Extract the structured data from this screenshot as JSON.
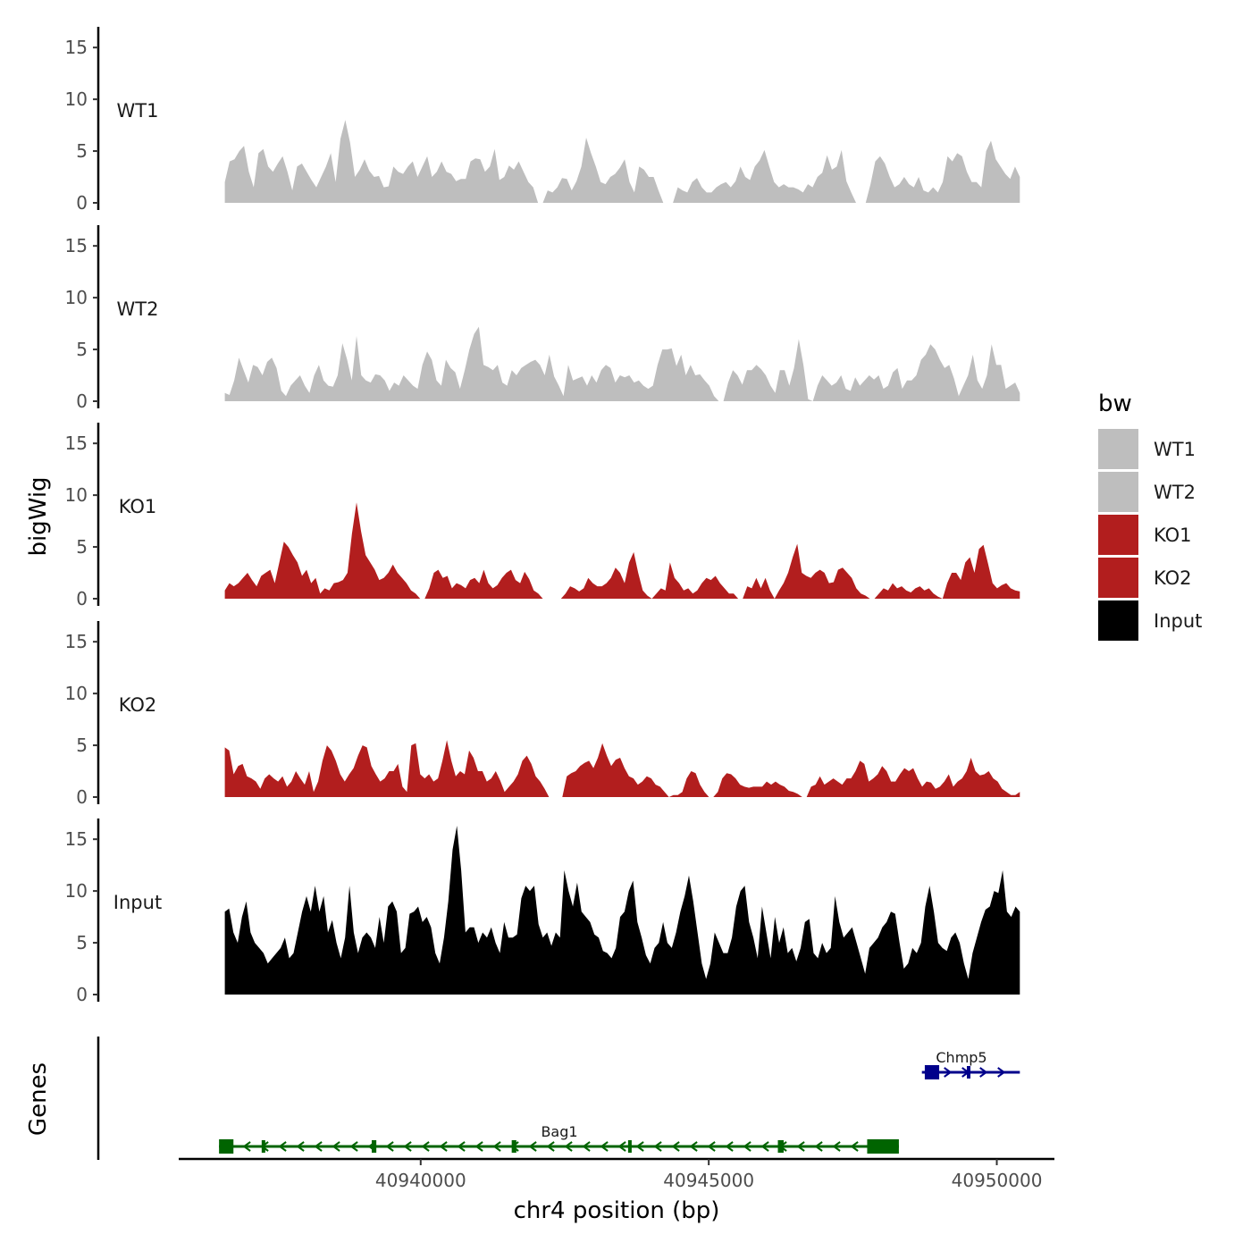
{
  "chart_data": {
    "type": "area",
    "chromosome": "chr4",
    "xlabel": "chr4 position (bp)",
    "ylabel": "bigWig",
    "genes_label": "Genes",
    "xlim": [
      40935800,
      40951000
    ],
    "ylim": [
      0,
      17
    ],
    "y_ticks": [
      0,
      5,
      10,
      15
    ],
    "x_ticks": [
      40940000,
      40945000,
      40950000
    ],
    "x_tick_labels": [
      "40940000",
      "40945000",
      "40950000"
    ],
    "legend": {
      "title": "bw",
      "position": "right"
    },
    "series": [
      {
        "name": "WT1",
        "color": "#bebebe",
        "x_range": [
          40936600,
          40950400
        ],
        "values": [
          2,
          4,
          4.2,
          5,
          5.5,
          3,
          1.5,
          4.8,
          5.2,
          3.5,
          3,
          3.8,
          4.5,
          3,
          1.2,
          3.5,
          3.8,
          3,
          2.2,
          1.5,
          2.5,
          3.5,
          4.8,
          2,
          6.2,
          8,
          5.8,
          2.5,
          3.2,
          4.2,
          3.1,
          2.5,
          2.6,
          1.5,
          1.6,
          3.5,
          3,
          2.8,
          3.5,
          4,
          2.5,
          3.5,
          4.5,
          2.5,
          3,
          4,
          3,
          2.8,
          2.1,
          2.3,
          2.3,
          4,
          4.3,
          4.2,
          3,
          3.5,
          5.2,
          2.2,
          2.5,
          3.6,
          3.2,
          4,
          3,
          2,
          1.5,
          0,
          0,
          1.2,
          1,
          1.5,
          2.4,
          2.3,
          1.2,
          2.1,
          3.5,
          6.3,
          4.8,
          3.5,
          2,
          1.8,
          2.5,
          2.8,
          3.4,
          4.2,
          2,
          1,
          3.5,
          3.2,
          2.5,
          2.5,
          1.2,
          0,
          0,
          0,
          1.5,
          1.2,
          1,
          2,
          2.4,
          1.5,
          1,
          1,
          1.5,
          1.8,
          2,
          1.5,
          2.1,
          3.5,
          2.5,
          2.2,
          3.5,
          4.1,
          5.1,
          3.5,
          2,
          1.5,
          1.8,
          1.5,
          1.5,
          1.3,
          1,
          1.8,
          1.5,
          2.5,
          2.9,
          4.6,
          3.2,
          3.5,
          5.1,
          2.1,
          1,
          0,
          0,
          0,
          1.8,
          4,
          4.5,
          3.8,
          2.5,
          1.5,
          1.8,
          2.5,
          1.8,
          1.5,
          2.5,
          1.2,
          1,
          1.5,
          1,
          2,
          4.5,
          4,
          4.8,
          4.5,
          3,
          2,
          2,
          1.5,
          5,
          6,
          4.2,
          3.5,
          2.8,
          2.3,
          3.5,
          2.5
        ]
      },
      {
        "name": "WT2",
        "color": "#bebebe",
        "x_range": [
          40936600,
          40950400
        ],
        "values": [
          0.8,
          0.6,
          2,
          4.2,
          3,
          1.8,
          3.5,
          3.3,
          2.5,
          3.8,
          4.2,
          3.2,
          1,
          0.5,
          1.5,
          2,
          2.5,
          1.5,
          0.8,
          2.5,
          3.5,
          2,
          1.5,
          1.4,
          2.5,
          5.6,
          4,
          2,
          6.3,
          2.5,
          2,
          1.8,
          2.6,
          2.5,
          2,
          1,
          1.8,
          1.5,
          2.5,
          2,
          1.5,
          1.2,
          3.5,
          4.8,
          4,
          2,
          1.5,
          4,
          3.2,
          2.8,
          1.2,
          3,
          5,
          6.5,
          7.2,
          3.5,
          3.3,
          3,
          3.5,
          1.8,
          1.5,
          3,
          2.5,
          3.2,
          3.5,
          3.8,
          4,
          3.5,
          2.5,
          4.5,
          2.4,
          1.5,
          0.5,
          3.5,
          2,
          2.2,
          2.4,
          1.5,
          2.5,
          1.8,
          3,
          3.5,
          3.2,
          1.8,
          2.5,
          2.3,
          2.5,
          1.8,
          2,
          1.5,
          1.2,
          1.5,
          3.5,
          5,
          5,
          5.1,
          3.4,
          4.5,
          2.5,
          3.5,
          2.5,
          2.6,
          2,
          1.5,
          0.5,
          0,
          0,
          1.8,
          3,
          2.5,
          1.6,
          3,
          3,
          3.5,
          3.1,
          2.5,
          1.5,
          0.8,
          3,
          3,
          1.5,
          3.2,
          6,
          3.5,
          0.2,
          0,
          1.5,
          2.5,
          2,
          1.5,
          1.8,
          2.5,
          1.2,
          1,
          2.3,
          1.5,
          2,
          2.5,
          2.1,
          2.5,
          1.2,
          1.5,
          2.8,
          3.2,
          1.2,
          2,
          2,
          2.5,
          4,
          4.5,
          5.5,
          5,
          4,
          3.2,
          3.5,
          2.2,
          0.5,
          1.5,
          2.5,
          4.5,
          2,
          1.2,
          2.5,
          5.5,
          3.5,
          3.5,
          1.2,
          1.5,
          1.8,
          0.8
        ]
      },
      {
        "name": "KO1",
        "color": "#b21e1e",
        "x_range": [
          40936600,
          40950400
        ],
        "values": [
          0.8,
          1.5,
          1.2,
          1.5,
          2,
          2.5,
          1.8,
          1.2,
          2.2,
          2.5,
          2.8,
          1.5,
          3.5,
          5.5,
          5,
          4.2,
          3.5,
          2.2,
          2.8,
          1.5,
          2,
          0.5,
          1,
          0.8,
          1.5,
          1.6,
          1.8,
          2.5,
          6.3,
          9.3,
          6.5,
          4.2,
          3.5,
          2.8,
          1.8,
          2,
          2.5,
          3.3,
          2.5,
          2,
          1.5,
          0.8,
          0.5,
          0,
          0,
          1,
          2.5,
          2.8,
          2,
          2.2,
          1,
          1.5,
          1.3,
          1,
          1.8,
          2,
          1.5,
          2.8,
          1.5,
          1,
          1.3,
          2,
          2.5,
          2.8,
          1.8,
          1.5,
          2.6,
          1.9,
          0.8,
          0.5,
          0,
          0,
          0,
          0,
          0,
          0.5,
          1.2,
          1,
          0.7,
          1,
          2,
          1.5,
          1.2,
          1.2,
          1.5,
          2,
          3,
          2.5,
          1.5,
          3.5,
          4.5,
          2.5,
          0.8,
          0.3,
          0,
          0.5,
          1,
          0.8,
          3.5,
          2,
          1.5,
          0.8,
          1,
          0.5,
          0.8,
          1.5,
          2,
          1.8,
          2.2,
          1.5,
          1,
          0.5,
          0.5,
          0,
          0,
          1.2,
          1,
          2,
          1,
          2,
          0.8,
          0,
          0.8,
          1.5,
          2.5,
          4,
          5.3,
          2.5,
          2.2,
          2,
          2.5,
          2.8,
          2.5,
          1.5,
          1.6,
          2.8,
          3,
          2.5,
          2,
          1,
          0.5,
          0.3,
          0,
          0,
          0.5,
          1,
          0.8,
          1.5,
          1,
          1.2,
          0.8,
          0.6,
          1,
          1.2,
          0.8,
          1,
          0.5,
          0.2,
          0,
          1.5,
          2.5,
          2.5,
          1.8,
          3.5,
          4,
          2.5,
          4.8,
          5.2,
          3.4,
          1.5,
          1,
          1.3,
          1.5,
          1,
          0.8,
          0.7
        ]
      },
      {
        "name": "KO2",
        "color": "#b21e1e",
        "x_range": [
          40936600,
          40950400
        ],
        "values": [
          4.8,
          4.5,
          2.2,
          3,
          3.2,
          2,
          1.8,
          1.5,
          0.8,
          1.8,
          2.2,
          1.8,
          1.5,
          2,
          1,
          1.5,
          2.5,
          1.8,
          1.2,
          2.5,
          0.5,
          1.5,
          3.5,
          5,
          4.5,
          3.5,
          2.2,
          1.5,
          2.2,
          2.8,
          4,
          5,
          4.8,
          3,
          2.2,
          1.5,
          1.8,
          2.5,
          2.5,
          3.2,
          1,
          0.5,
          5,
          5.2,
          2.2,
          1.8,
          2.2,
          1.5,
          1.8,
          3.5,
          5.5,
          3.5,
          2,
          2.5,
          2.2,
          4.5,
          3.8,
          2.5,
          2.5,
          1.5,
          1.8,
          2.5,
          1.6,
          0.5,
          1,
          1.5,
          2.2,
          3.5,
          4,
          3.2,
          2,
          1.5,
          0.8,
          0,
          0,
          0,
          0,
          2,
          2.3,
          2.5,
          3,
          3.3,
          3.5,
          2.8,
          3.8,
          5.2,
          4,
          3,
          3.6,
          3.8,
          2.8,
          2,
          1.8,
          1.2,
          1.5,
          2,
          1.8,
          1.2,
          1,
          0.5,
          0,
          0.2,
          0.2,
          0.5,
          1.8,
          2.5,
          2.3,
          1.2,
          0.5,
          0,
          0,
          0.5,
          1.8,
          2.3,
          2.2,
          1.8,
          1.2,
          1,
          0.9,
          1,
          1,
          1,
          1.5,
          1.2,
          1.5,
          1.2,
          1,
          0.6,
          0.5,
          0.3,
          0,
          0,
          1,
          1.2,
          2,
          1.2,
          1.5,
          1.8,
          1.5,
          1.2,
          1.8,
          1.8,
          2.5,
          3.5,
          3.2,
          1.5,
          1.8,
          2.2,
          3,
          2.5,
          1.5,
          1.5,
          2.2,
          2.8,
          2.5,
          2.8,
          1.8,
          1,
          1.5,
          1.4,
          0.8,
          1,
          1.5,
          2.2,
          1,
          1.5,
          1.8,
          2.5,
          3.8,
          2.5,
          2.1,
          2.2,
          2.5,
          1.8,
          1.5,
          0.8,
          0.5,
          0.2,
          0.2,
          0.5
        ]
      },
      {
        "name": "Input",
        "color": "#000000",
        "x_range": [
          40936600,
          40950400
        ],
        "values": [
          8,
          8.3,
          6,
          5,
          7.5,
          9,
          6,
          5,
          4.5,
          4,
          3,
          3.5,
          4,
          4.5,
          5.5,
          3.5,
          4,
          6,
          8,
          9.5,
          8,
          10.5,
          8,
          9.5,
          6,
          7.2,
          5,
          3.5,
          5.5,
          10.5,
          6,
          4,
          5.5,
          6,
          5.5,
          4.5,
          7.5,
          5,
          8.5,
          9,
          8,
          4,
          4.5,
          7.8,
          8,
          8.5,
          7,
          7.5,
          6.5,
          4,
          3,
          5.5,
          9,
          14,
          16.3,
          12,
          6,
          6.5,
          6.5,
          5,
          6,
          5.5,
          6.5,
          5,
          4,
          7,
          5.5,
          5.5,
          5.8,
          9.3,
          10.5,
          10,
          10.5,
          6.8,
          5.5,
          6,
          4.7,
          6,
          5.5,
          12,
          10,
          8.5,
          10.8,
          8,
          7.5,
          7,
          5.8,
          5.5,
          4.2,
          4,
          3.5,
          4.5,
          7.5,
          8,
          10,
          11,
          7,
          5.5,
          3.8,
          3,
          4.5,
          5,
          7,
          5,
          4.5,
          6,
          8,
          9.5,
          11.5,
          9,
          6,
          3,
          1.5,
          3,
          6,
          5,
          4,
          4,
          5.5,
          8.5,
          10,
          10.5,
          7,
          5.5,
          3.5,
          8.5,
          6,
          3.5,
          7.5,
          5,
          6.5,
          4,
          4.5,
          3.2,
          4.5,
          7,
          7.3,
          4,
          3.5,
          5,
          4,
          4.5,
          9.5,
          7,
          5.5,
          6,
          6.5,
          5,
          3.5,
          2,
          4.5,
          5,
          5.5,
          6.5,
          7,
          8,
          7.8,
          5,
          2.5,
          3,
          4.5,
          4,
          5,
          8.5,
          10.5,
          8,
          5,
          4.5,
          4.2,
          5.5,
          6,
          5,
          3,
          1.5,
          4,
          5.5,
          7,
          8.2,
          8.5,
          10,
          9.8,
          12,
          8,
          7.5,
          8.5,
          8
        ]
      }
    ],
    "genes": [
      {
        "name": "Bag1",
        "strand": "-",
        "color": "#006400",
        "start": 40936500,
        "end": 40948300,
        "exons": [
          [
            40936500,
            40936750
          ],
          [
            40937240,
            40937270
          ],
          [
            40939150,
            40939230
          ],
          [
            40941580,
            40941660
          ],
          [
            40943600,
            40943660
          ],
          [
            40946200,
            40946300
          ],
          [
            40947750,
            40948300
          ]
        ]
      },
      {
        "name": "Chmp5",
        "strand": "+",
        "color": "#00008b",
        "start": 40948700,
        "end": 40950400,
        "exons": [
          [
            40948750,
            40949000
          ],
          [
            40949480,
            40949540
          ]
        ]
      }
    ]
  }
}
